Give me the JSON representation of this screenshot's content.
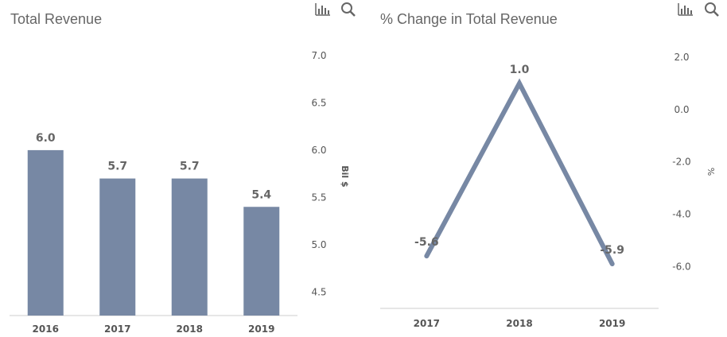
{
  "colors": {
    "series": "#7788a4",
    "axis_text": "#555555",
    "label_text": "#666666",
    "title_text": "#666666",
    "icon": "#666666",
    "baseline": "#cccccc"
  },
  "toolbar": {
    "chart_icon": "bar-chart-icon",
    "search_icon": "search-icon"
  },
  "chart_data": [
    {
      "type": "bar",
      "title": "Total Revenue",
      "categories": [
        "2016",
        "2017",
        "2018",
        "2019"
      ],
      "values": [
        6.0,
        5.7,
        5.7,
        5.4
      ],
      "data_labels": [
        "6.0",
        "5.7",
        "5.7",
        "5.4"
      ],
      "ylabel": "Bil $",
      "yticks": [
        "7.0",
        "6.5",
        "6.0",
        "5.5",
        "5.0",
        "4.5"
      ],
      "ylim": [
        4.25,
        7.0
      ],
      "grid": false,
      "legend": "none"
    },
    {
      "type": "line",
      "title": "% Change in Total Revenue",
      "categories": [
        "2017",
        "2018",
        "2019"
      ],
      "values": [
        -5.6,
        1.0,
        -5.9
      ],
      "data_labels": [
        "-5.6",
        "1.0",
        "-5.9"
      ],
      "ylabel": "%",
      "yticks": [
        "2.0",
        "0.0",
        "-2.0",
        "-4.0",
        "-6.0"
      ],
      "ylim": [
        -7.6,
        2.0
      ],
      "grid": false,
      "legend": "none"
    }
  ]
}
